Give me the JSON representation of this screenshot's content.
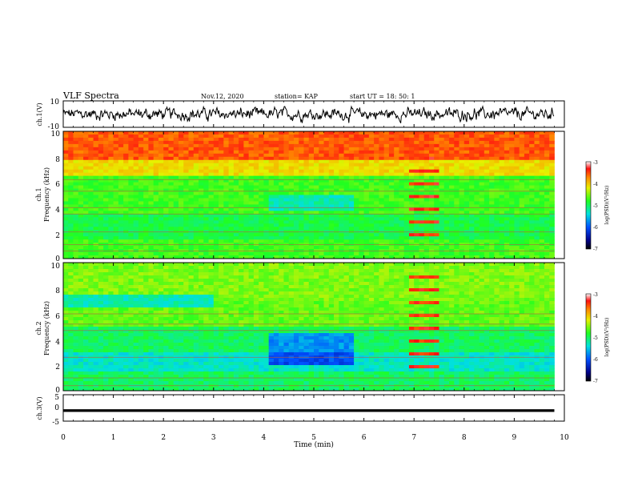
{
  "header": {
    "title": "VLF Spectra",
    "date": "Nov.12, 2020",
    "station": "station= KAP",
    "start_time": "start UT = 18: 50: 1"
  },
  "xaxis": {
    "label": "Time (min)",
    "ticks": [
      "0",
      "1",
      "2",
      "3",
      "4",
      "5",
      "6",
      "7",
      "8",
      "9",
      "10"
    ]
  },
  "panels": {
    "ch1_waveform": {
      "ylabel": "ch.1(V)",
      "ticks": [
        "10",
        "-10"
      ]
    },
    "ch1_spectrum": {
      "ylabel_line1": "ch.1",
      "ylabel_line2": "Frequency (kHz)",
      "ticks": [
        "10",
        "8",
        "6",
        "4",
        "2",
        "0"
      ]
    },
    "ch2_spectrum": {
      "ylabel_line1": "ch.2",
      "ylabel_line2": "Frequency (kHz)",
      "ticks": [
        "10",
        "8",
        "6",
        "4",
        "2",
        "0"
      ]
    },
    "ch3_waveform": {
      "ylabel": "ch.3(V)",
      "ticks": [
        "5",
        "0",
        "-5"
      ]
    }
  },
  "colorbars": {
    "ticks": [
      "-3",
      "-4",
      "-5",
      "-6",
      "-7"
    ],
    "label": "log(PSD)(V²/Hz)"
  },
  "chart_data": [
    {
      "type": "line",
      "panel": "ch1_waveform",
      "xlabel": "Time (min)",
      "ylabel": "ch.1(V)",
      "xlim": [
        0,
        10
      ],
      "ylim": [
        -10,
        10
      ],
      "x_end": 9.8,
      "description_values": "noisy signal around 0 V, amplitude about ±5 V"
    },
    {
      "type": "heatmap",
      "panel": "ch1_spectrum",
      "xlabel": "Time (min)",
      "ylabel": "Frequency (kHz)",
      "xlim": [
        0,
        10
      ],
      "ylim": [
        0,
        10
      ],
      "x_end": 9.8,
      "colorbar_range": [
        -7,
        -3
      ],
      "colorbar_label": "log(PSD)(V²/Hz)"
    },
    {
      "type": "heatmap",
      "panel": "ch2_spectrum",
      "xlabel": "Time (min)",
      "ylabel": "Frequency (kHz)",
      "xlim": [
        0,
        10
      ],
      "ylim": [
        0,
        10
      ],
      "x_end": 9.8,
      "colorbar_range": [
        -7,
        -3
      ],
      "colorbar_label": "log(PSD)(V²/Hz)"
    },
    {
      "type": "line",
      "panel": "ch3_waveform",
      "xlabel": "Time (min)",
      "ylabel": "ch.3(V)",
      "xlim": [
        0,
        10
      ],
      "ylim": [
        -5,
        5
      ],
      "x_end": 9.8,
      "description_values": "near-constant about -1 V, thick dense trace"
    }
  ]
}
